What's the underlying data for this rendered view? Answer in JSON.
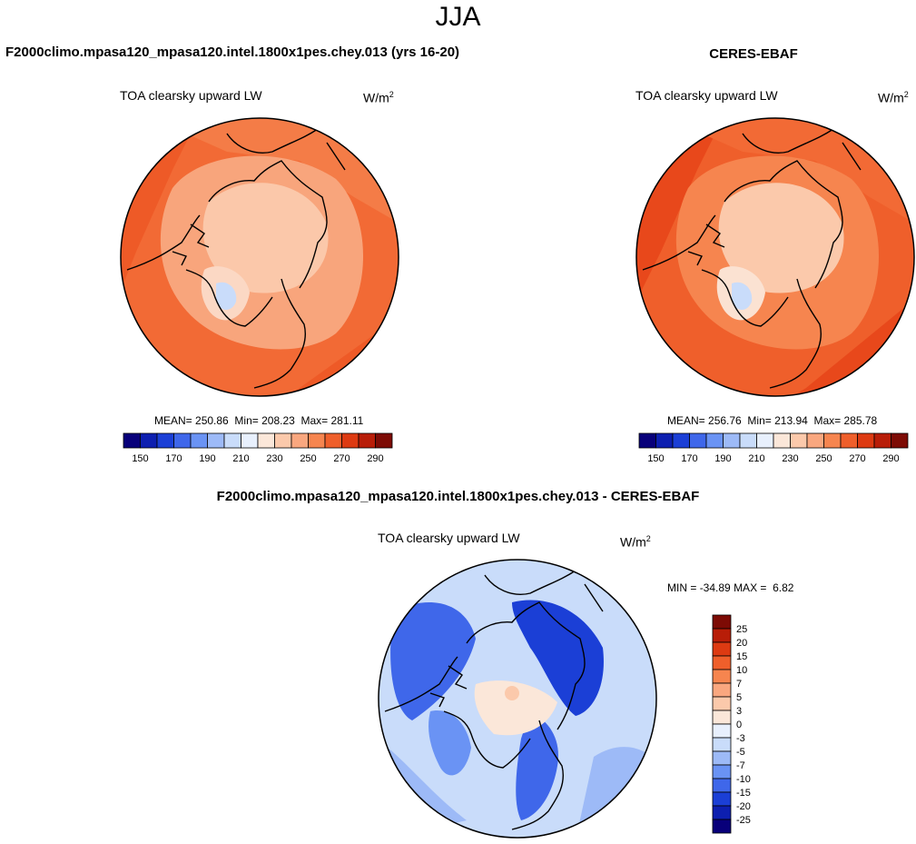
{
  "figure": {
    "season": "JJA",
    "diff_title": "F2000climo.mpasa120_mpasa120.intel.1800x1pes.chey.013 - CERES-EBAF"
  },
  "panels": {
    "model": {
      "title": "F2000climo.mpasa120_mpasa120.intel.1800x1pes.chey.013 (yrs 16-20)",
      "variable": "TOA clearsky upward LW",
      "units": "W/m",
      "units_exp": "2",
      "mean_label": "MEAN=",
      "mean": "250.86",
      "min_label": "Min=",
      "min": "208.23",
      "max_label": "Max=",
      "max": "281.11"
    },
    "obs": {
      "title": "CERES-EBAF",
      "variable": "TOA clearsky upward LW",
      "units": "W/m",
      "units_exp": "2",
      "mean_label": "MEAN=",
      "mean": "256.76",
      "min_label": "Min=",
      "min": "213.94",
      "max_label": "Max=",
      "max": "285.78"
    },
    "diff": {
      "variable": "TOA clearsky upward LW",
      "units": "W/m",
      "units_exp": "2",
      "min_label": "MIN =",
      "min": "-34.89",
      "max_label": "MAX =",
      "max": "6.82"
    }
  },
  "colorbars": {
    "main": {
      "labels": [
        "150",
        "170",
        "190",
        "210",
        "230",
        "250",
        "270",
        "290"
      ],
      "colors": [
        "#08007a",
        "#0d1fb0",
        "#1b3fd6",
        "#3f67ea",
        "#6a93f4",
        "#9dbaf7",
        "#c9dcfa",
        "#e8f0fd",
        "#fbe7d9",
        "#fbc9ab",
        "#f9a77f",
        "#f6854f",
        "#ef5f2b",
        "#dd3a12",
        "#b81d08",
        "#7d0b05"
      ]
    },
    "diff": {
      "labels": [
        "25",
        "20",
        "15",
        "10",
        "7",
        "5",
        "3",
        "0",
        "-3",
        "-5",
        "-7",
        "-10",
        "-15",
        "-20",
        "-25"
      ],
      "colors": [
        "#7d0b05",
        "#b81d08",
        "#dd3a12",
        "#ef5f2b",
        "#f6854f",
        "#f9a77f",
        "#fbc9ab",
        "#fbe7d9",
        "#e8f0fd",
        "#c9dcfa",
        "#9dbaf7",
        "#6a93f4",
        "#3f67ea",
        "#1b3fd6",
        "#0d1fb0",
        "#08007a"
      ]
    }
  }
}
